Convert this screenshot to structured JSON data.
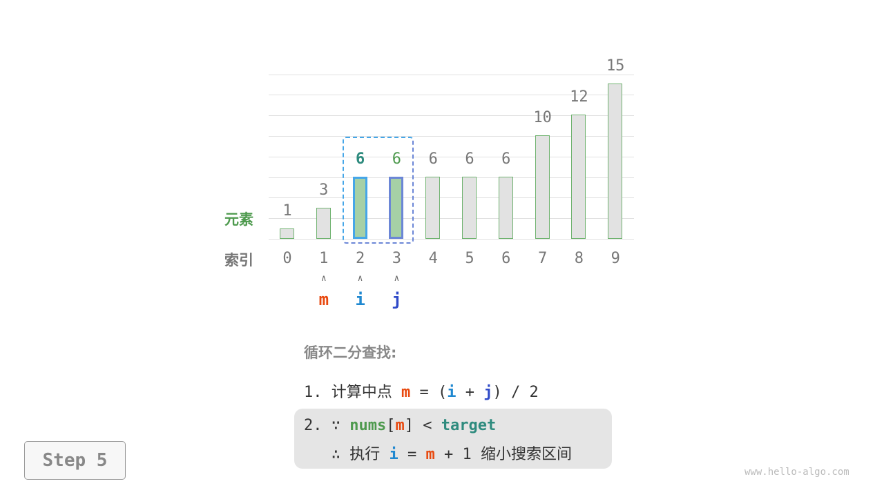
{
  "chart_data": {
    "type": "bar",
    "categories": [
      "0",
      "1",
      "2",
      "3",
      "4",
      "5",
      "6",
      "7",
      "8",
      "9"
    ],
    "values": [
      1,
      3,
      6,
      6,
      6,
      6,
      6,
      10,
      12,
      15
    ],
    "ylim": [
      0,
      16
    ],
    "grid": true,
    "highlighted": [
      2,
      3
    ],
    "row_labels": {
      "values": "元素",
      "indices": "索引"
    }
  },
  "pointers": [
    {
      "label": "m",
      "index": 1,
      "color": "#e8490f"
    },
    {
      "label": "i",
      "index": 2,
      "color": "#1f88d0"
    },
    {
      "label": "j",
      "index": 3,
      "color": "#2f4ac8"
    }
  ],
  "colors": {
    "i_box": "#45a6e8",
    "j_box": "#6b86d6",
    "bar_fill": "#e2e2e2",
    "bar_hl": "#a6d0a6"
  },
  "arrow_glyph": "∧",
  "steps": {
    "title": "循环二分查找:",
    "line1": {
      "num": "1.",
      "text": "计算中点",
      "m": "m",
      "eq": "=",
      "lp": "(",
      "i": "i",
      "plus": "+",
      "j": "j",
      "rp": ")",
      "div": "/ 2"
    },
    "line2": {
      "num": "2.",
      "because": "∵",
      "nums": "nums",
      "lb": "[",
      "m": "m",
      "rb": "]",
      "lt": "<",
      "target": "target"
    },
    "line3": {
      "therefore": "∴",
      "exec": "执行",
      "i": "i",
      "eq": "=",
      "m": "m",
      "rest": "+ 1",
      "desc": "缩小搜索区间"
    }
  },
  "step_button": "Step 5",
  "watermark": "www.hello-algo.com"
}
